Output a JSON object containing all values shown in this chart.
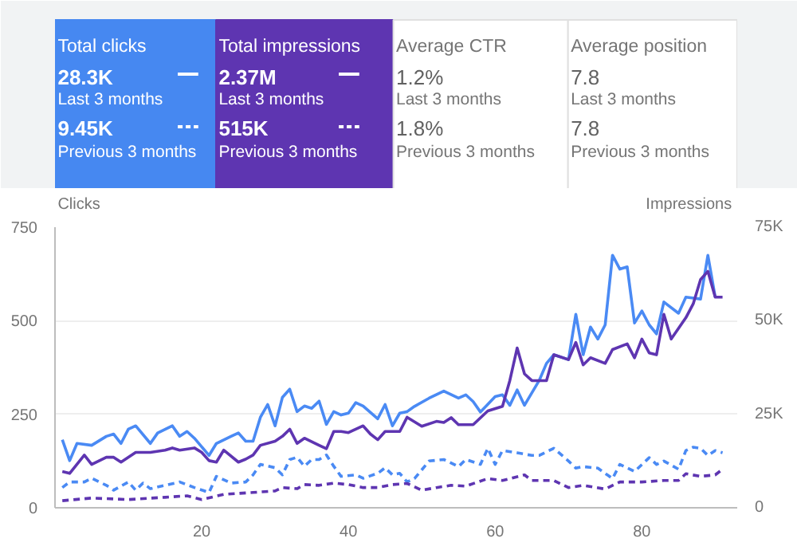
{
  "chart_data": [
    {
      "type": "other",
      "colors": [
        "#4688f1",
        "#5e35b1",
        "#ffffff",
        "#ffffff"
      ],
      "categories": [
        "Total clicks",
        "Total impressions",
        "Average CTR",
        "Average position"
      ],
      "annotations": [
        [
          "28.3K",
          "Last 3 months",
          "9.45K",
          "Previous 3 months"
        ],
        [
          "2.37M",
          "Last 3 months",
          "515K",
          "Previous 3 months"
        ],
        [
          "1.2%",
          "Last 3 months",
          "1.8%",
          "Previous 3 months"
        ],
        [
          "7.8",
          "Last 3 months",
          "7.8",
          "Previous 3 months"
        ]
      ]
    },
    {
      "type": "line",
      "ylabel": "Clicks",
      "y2label": "Impressions",
      "xlim": [
        0,
        93
      ],
      "xticks": [
        20,
        40,
        60,
        80
      ],
      "ylim": [
        0,
        750
      ],
      "yticks": [
        0,
        250,
        500,
        750
      ],
      "y2lim": [
        0,
        75000
      ],
      "y2ticks": [
        0,
        {
          "value": 25000,
          "label": "25K"
        },
        {
          "value": 50000,
          "label": "50K"
        },
        {
          "value": 75000,
          "label": "75K"
        }
      ],
      "grid": "y",
      "series": [
        {
          "color": "#4a8af4",
          "line_style": "solid",
          "x": [
            1,
            2,
            3,
            5,
            7,
            8,
            9,
            10,
            11,
            13,
            14,
            16,
            17,
            18,
            19,
            21,
            22,
            24,
            25,
            26,
            27,
            28,
            29,
            30,
            31,
            32,
            33,
            34,
            35,
            36,
            37,
            38,
            39,
            40,
            41,
            42,
            44,
            45,
            46,
            47,
            48,
            49,
            51,
            53,
            55,
            56,
            57,
            58,
            60,
            61,
            62,
            63,
            64,
            66,
            67,
            68,
            70,
            71,
            72,
            73,
            74,
            75,
            76,
            77,
            78,
            79,
            80,
            81,
            82,
            83,
            85,
            86,
            88,
            89,
            90
          ],
          "values": [
            182,
            126,
            172,
            167,
            191,
            197,
            172,
            210,
            219,
            172,
            200,
            219,
            191,
            204,
            186,
            140,
            172,
            191,
            200,
            178,
            178,
            242,
            276,
            219,
            295,
            317,
            257,
            272,
            266,
            285,
            223,
            257,
            248,
            253,
            281,
            272,
            238,
            276,
            219,
            253,
            257,
            271,
            293,
            312,
            293,
            302,
            284,
            256,
            297,
            302,
            274,
            315,
            274,
            340,
            386,
            409,
            396,
            517,
            409,
            483,
            451,
            489,
            675,
            638,
            644,
            494,
            526,
            489,
            465,
            550,
            520,
            563,
            558,
            675,
            563
          ]
        },
        {
          "color": "#5e35b1",
          "line_style": "solid",
          "axis": "y2",
          "x": [
            1,
            2,
            4,
            5,
            7,
            8,
            9,
            11,
            13,
            15,
            16,
            17,
            19,
            20,
            21,
            22,
            23,
            25,
            26,
            27,
            28,
            30,
            31,
            32,
            33,
            34,
            36,
            37,
            38,
            39,
            40,
            41,
            42,
            43,
            44,
            45,
            47,
            48,
            50,
            52,
            53,
            54,
            55,
            57,
            59,
            61,
            62,
            63,
            64,
            65,
            67,
            68,
            70,
            71,
            72,
            73,
            75,
            76,
            78,
            79,
            80,
            81,
            82,
            83,
            84,
            86,
            87,
            88,
            89,
            90,
            91
          ],
          "values": [
            9700,
            9200,
            14100,
            11600,
            13500,
            13500,
            12200,
            14800,
            14800,
            15400,
            16000,
            15400,
            16000,
            14800,
            12600,
            12200,
            15400,
            12200,
            13000,
            14100,
            16700,
            17800,
            19100,
            21000,
            17200,
            18600,
            16700,
            15800,
            20400,
            20400,
            20100,
            21000,
            21900,
            19700,
            18200,
            20400,
            20400,
            24200,
            21800,
            23100,
            22800,
            24100,
            22200,
            22200,
            25900,
            27100,
            34000,
            42700,
            35800,
            34000,
            34000,
            40900,
            39600,
            44200,
            38200,
            40100,
            38600,
            42300,
            43800,
            40100,
            45100,
            41400,
            40900,
            51700,
            45100,
            50800,
            54500,
            61000,
            63200,
            56300,
            56300
          ]
        },
        {
          "color": "#4a8af4",
          "line_style": "dashed",
          "x": [
            1,
            2,
            4,
            5,
            7,
            8,
            10,
            11,
            12,
            13,
            15,
            17,
            19,
            21,
            22,
            24,
            26,
            27,
            28,
            30,
            31,
            32,
            33,
            34,
            35,
            36,
            37,
            38,
            39,
            41,
            42,
            44,
            45,
            46,
            47,
            48,
            49,
            51,
            53,
            55,
            56,
            58,
            59,
            60,
            61,
            63,
            65,
            66,
            68,
            70,
            71,
            72,
            74,
            76,
            77,
            79,
            81,
            82,
            83,
            85,
            86,
            87,
            88,
            89,
            90,
            91
          ],
          "values": [
            54,
            69,
            69,
            79,
            60,
            47,
            69,
            47,
            66,
            51,
            60,
            69,
            54,
            41,
            84,
            66,
            69,
            88,
            116,
            107,
            88,
            129,
            135,
            111,
            129,
            129,
            141,
            111,
            84,
            88,
            79,
            92,
            107,
            88,
            92,
            69,
            78,
            125,
            129,
            110,
            129,
            116,
            159,
            116,
            153,
            147,
            140,
            140,
            159,
            125,
            106,
            110,
            106,
            78,
            116,
            97,
            134,
            116,
            125,
            103,
            153,
            162,
            159,
            140,
            153,
            147
          ]
        },
        {
          "color": "#5e35b1",
          "line_style": "dashed",
          "axis": "y2",
          "x": [
            1,
            5,
            10,
            15,
            18,
            20,
            23,
            27,
            30,
            31,
            33,
            34,
            36,
            38,
            40,
            42,
            44,
            46,
            48,
            50,
            52,
            54,
            56,
            59,
            61,
            64,
            65,
            68,
            70,
            72,
            75,
            77,
            80,
            83,
            85,
            86,
            88,
            90,
            91
          ],
          "values": [
            1900,
            2600,
            2200,
            2800,
            3200,
            2200,
            3600,
            4100,
            4500,
            5400,
            5100,
            6200,
            6000,
            6600,
            6200,
            5400,
            5400,
            6200,
            6500,
            4700,
            5400,
            6000,
            5800,
            7800,
            7300,
            8800,
            7300,
            7300,
            5400,
            6000,
            5000,
            6900,
            6900,
            7300,
            7300,
            9100,
            8400,
            8800,
            10300
          ]
        }
      ]
    }
  ]
}
